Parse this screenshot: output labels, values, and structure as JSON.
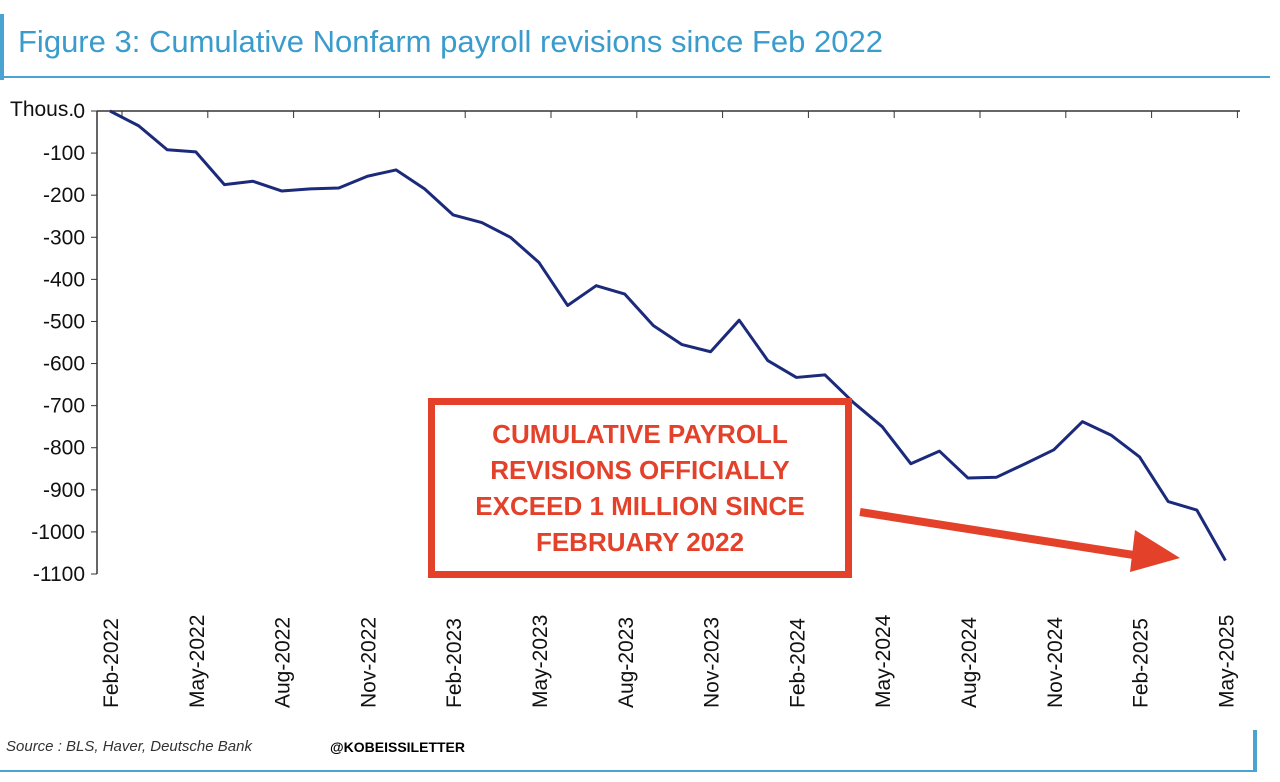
{
  "title": "Figure 3: Cumulative Nonfarm payroll revisions since Feb 2022",
  "source": "Source : BLS, Haver, Deutsche Bank",
  "handle": "@KOBEISSILETTER",
  "callout": "CUMULATIVE PAYROLL REVISIONS OFFICIALLY EXCEED 1 MILLION SINCE FEBRUARY 2022",
  "colors": {
    "line": "#1b2a7a",
    "callout": "#e4412b",
    "title": "#3a9ccc"
  },
  "chart_data": {
    "type": "line",
    "title": "Figure 3: Cumulative Nonfarm payroll revisions since Feb 2022",
    "ylabel": "Thous.",
    "ylim": [
      -1100,
      0
    ],
    "yticks": [
      0,
      -100,
      -200,
      -300,
      -400,
      -500,
      -600,
      -700,
      -800,
      -900,
      -1000,
      -1100
    ],
    "xtick_labels": [
      "Feb-2022",
      "May-2022",
      "Aug-2022",
      "Nov-2022",
      "Feb-2023",
      "May-2023",
      "Aug-2023",
      "Nov-2023",
      "Feb-2024",
      "May-2024",
      "Aug-2024",
      "Nov-2024",
      "Feb-2025",
      "May-2025"
    ],
    "x": [
      "2022-02",
      "2022-03",
      "2022-04",
      "2022-05",
      "2022-06",
      "2022-07",
      "2022-08",
      "2022-09",
      "2022-10",
      "2022-11",
      "2022-12",
      "2023-01",
      "2023-02",
      "2023-03",
      "2023-04",
      "2023-05",
      "2023-06",
      "2023-07",
      "2023-08",
      "2023-09",
      "2023-10",
      "2023-11",
      "2023-12",
      "2024-01",
      "2024-02",
      "2024-03",
      "2024-04",
      "2024-05",
      "2024-06",
      "2024-07",
      "2024-08",
      "2024-09",
      "2024-10",
      "2024-11",
      "2024-12",
      "2025-01",
      "2025-02",
      "2025-03",
      "2025-04",
      "2025-05"
    ],
    "values": [
      0,
      -35,
      -92,
      -97,
      -175,
      -167,
      -190,
      -185,
      -183,
      -155,
      -140,
      -185,
      -247,
      -265,
      -300,
      -360,
      -462,
      -415,
      -435,
      -510,
      -555,
      -572,
      -497,
      -593,
      -633,
      -627,
      -693,
      -750,
      -838,
      -808,
      -872,
      -870,
      -838,
      -805,
      -738,
      -770,
      -822,
      -928,
      -948,
      -1068
    ],
    "grid": false,
    "legend": "none"
  }
}
